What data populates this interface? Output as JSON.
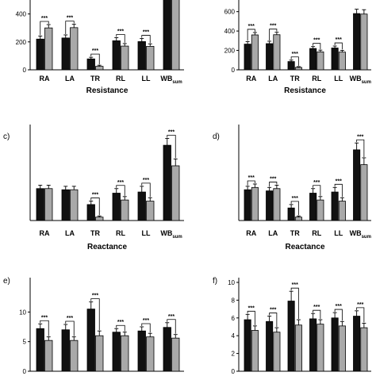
{
  "chart_data": [
    {
      "id": "a",
      "type": "bar",
      "panel_label": "",
      "categories": [
        "RA",
        "LA",
        "TR",
        "RL",
        "LL",
        "WB"
      ],
      "last_subscript": "sum",
      "xlabel": "Resistance",
      "yticks": [
        0,
        200,
        400
      ],
      "ylim": [
        0,
        500
      ],
      "series": [
        {
          "values": [
            220,
            228,
            78,
            208,
            202,
            520
          ],
          "errors": [
            22,
            22,
            12,
            22,
            22,
            40
          ]
        },
        {
          "values": [
            300,
            302,
            25,
            170,
            168,
            520
          ],
          "errors": [
            24,
            24,
            8,
            18,
            18,
            40
          ]
        }
      ],
      "significance": [
        "***",
        "***",
        "***",
        "***",
        "***",
        ""
      ],
      "colors": {
        "series1": "#111111",
        "series2": "#a9a9a9"
      }
    },
    {
      "id": "b",
      "type": "bar",
      "panel_label": "",
      "categories": [
        "RA",
        "LA",
        "TR",
        "RL",
        "LL",
        "WB"
      ],
      "last_subscript": "sum",
      "xlabel": "Resistance",
      "yticks": [
        0,
        200,
        400,
        600
      ],
      "ylim": [
        0,
        720
      ],
      "series": [
        {
          "values": [
            265,
            270,
            85,
            220,
            225,
            580
          ],
          "errors": [
            25,
            25,
            15,
            20,
            20,
            45
          ]
        },
        {
          "values": [
            360,
            362,
            25,
            185,
            183,
            575
          ],
          "errors": [
            25,
            25,
            8,
            18,
            18,
            45
          ]
        }
      ],
      "significance": [
        "***",
        "***",
        "***",
        "***",
        "***",
        ""
      ],
      "colors": {
        "series1": "#111111",
        "series2": "#a9a9a9"
      }
    },
    {
      "id": "c",
      "type": "bar",
      "panel_label": "c)",
      "categories": [
        "RA",
        "LA",
        "TR",
        "RL",
        "LL",
        "WB"
      ],
      "last_subscript": "sum",
      "xlabel": "Reactance",
      "yticks": [],
      "ylim": [
        0,
        80
      ],
      "series": [
        {
          "values": [
            28,
            27,
            14,
            24,
            25,
            66
          ],
          "errors": [
            3,
            3,
            3,
            4,
            5,
            6
          ]
        },
        {
          "values": [
            28,
            27,
            3,
            18,
            17,
            48
          ],
          "errors": [
            3,
            3,
            1,
            3,
            3,
            6
          ]
        }
      ],
      "significance": [
        "",
        "",
        "***",
        "***",
        "***",
        "***"
      ],
      "colors": {
        "series1": "#111111",
        "series2": "#a9a9a9"
      }
    },
    {
      "id": "d",
      "type": "bar",
      "panel_label": "d)",
      "categories": [
        "RA",
        "LA",
        "TR",
        "RL",
        "LL",
        "WB"
      ],
      "last_subscript": "sum",
      "xlabel": "Reactance",
      "yticks": [],
      "ylim": [
        0,
        80
      ],
      "series": [
        {
          "values": [
            27,
            26,
            11,
            24,
            25,
            62
          ],
          "errors": [
            3,
            3,
            3,
            4,
            4,
            6
          ]
        },
        {
          "values": [
            29,
            28,
            3,
            18,
            17,
            49
          ],
          "errors": [
            3,
            3,
            1,
            3,
            3,
            6
          ]
        }
      ],
      "significance": [
        "***",
        "***",
        "***",
        "***",
        "***",
        "***"
      ],
      "colors": {
        "series1": "#111111",
        "series2": "#a9a9a9"
      }
    },
    {
      "id": "e",
      "type": "bar",
      "panel_label": "e)",
      "categories": [
        "RA",
        "LA",
        "TR",
        "RL",
        "LL",
        "WB"
      ],
      "last_subscript": "sum",
      "xlabel": "",
      "yticks": [
        0,
        5,
        10
      ],
      "ylim": [
        0,
        15
      ],
      "series": [
        {
          "values": [
            7.2,
            7.0,
            10.5,
            6.6,
            6.8,
            7.4
          ],
          "errors": [
            0.8,
            0.9,
            1.2,
            0.6,
            0.7,
            0.8
          ]
        },
        {
          "values": [
            5.2,
            5.2,
            6.0,
            6.0,
            5.8,
            5.6
          ],
          "errors": [
            0.6,
            0.6,
            0.8,
            0.6,
            0.6,
            0.6
          ]
        }
      ],
      "significance": [
        "***",
        "***",
        "***",
        "***",
        "***",
        "***"
      ],
      "colors": {
        "series1": "#111111",
        "series2": "#a9a9a9"
      }
    },
    {
      "id": "f",
      "type": "bar",
      "panel_label": "f)",
      "categories": [
        "RA",
        "LA",
        "TR",
        "RL",
        "LL",
        "WB"
      ],
      "last_subscript": "sum",
      "xlabel": "",
      "yticks": [
        0,
        2,
        4,
        6,
        8,
        10
      ],
      "ylim": [
        0,
        10
      ],
      "series": [
        {
          "values": [
            5.8,
            5.6,
            7.9,
            5.9,
            6.0,
            6.2
          ],
          "errors": [
            0.6,
            0.6,
            1.1,
            0.6,
            0.6,
            0.6
          ]
        },
        {
          "values": [
            4.6,
            4.4,
            5.2,
            5.3,
            5.1,
            4.9
          ],
          "errors": [
            0.5,
            0.5,
            0.6,
            0.5,
            0.5,
            0.5
          ]
        }
      ],
      "significance": [
        "***",
        "***",
        "***",
        "***",
        "***",
        "***"
      ],
      "colors": {
        "series1": "#111111",
        "series2": "#a9a9a9"
      }
    }
  ]
}
